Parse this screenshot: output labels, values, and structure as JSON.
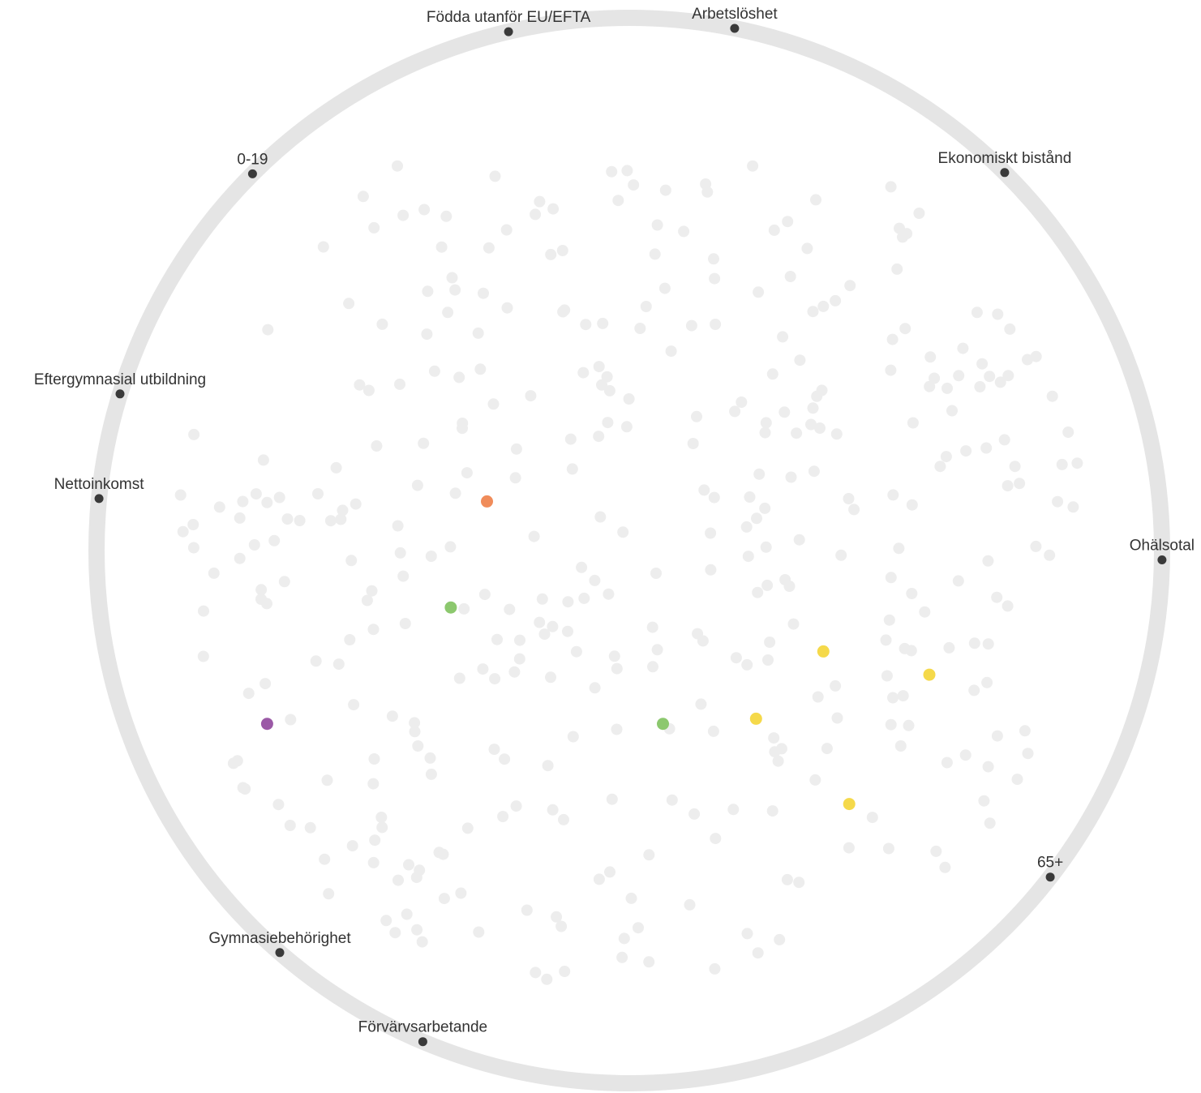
{
  "chart_data": {
    "type": "radviz",
    "anchors": [
      {
        "name": "Arbetslöshet",
        "angle_deg": 78.6,
        "label_pos": "above"
      },
      {
        "name": "Ekonomiskt bistånd",
        "angle_deg": 45.2,
        "label_pos": "above"
      },
      {
        "name": "Ohälsotal",
        "angle_deg": -1.0,
        "label_pos": "above"
      },
      {
        "name": "65+",
        "angle_deg": -37.8,
        "label_pos": "above"
      },
      {
        "name": "Förvärvsarbetande",
        "angle_deg": -112.8,
        "label_pos": "above"
      },
      {
        "name": "Gymnasiebehörighet",
        "angle_deg": -131.0,
        "label_pos": "above"
      },
      {
        "name": "Nettoinkomst",
        "angle_deg": 174.4,
        "label_pos": "above"
      },
      {
        "name": "Eftergymnasial utbildning",
        "angle_deg": 162.9,
        "label_pos": "above"
      },
      {
        "name": "0-19",
        "angle_deg": 135.0,
        "label_pos": "above"
      },
      {
        "name": "Födda utanför EU/EFTA",
        "angle_deg": 103.1,
        "label_pos": "above"
      }
    ],
    "highlighted_points": [
      {
        "x": -0.275,
        "y": 0.095,
        "color": "#f08c5a"
      },
      {
        "x": -0.345,
        "y": -0.11,
        "color": "#8cc86e"
      },
      {
        "x": 0.065,
        "y": -0.335,
        "color": "#8cc86e"
      },
      {
        "x": -0.7,
        "y": -0.335,
        "color": "#9b59a6"
      },
      {
        "x": 0.375,
        "y": -0.195,
        "color": "#f5d94a"
      },
      {
        "x": 0.58,
        "y": -0.24,
        "color": "#f5d94a"
      },
      {
        "x": 0.245,
        "y": -0.325,
        "color": "#f5d94a"
      },
      {
        "x": 0.425,
        "y": -0.49,
        "color": "#f5d94a"
      }
    ],
    "background_point_color": "#ededed",
    "background_point_count": 380,
    "circle_color": "#e5e5e5",
    "anchor_color": "#3a3a3a"
  }
}
